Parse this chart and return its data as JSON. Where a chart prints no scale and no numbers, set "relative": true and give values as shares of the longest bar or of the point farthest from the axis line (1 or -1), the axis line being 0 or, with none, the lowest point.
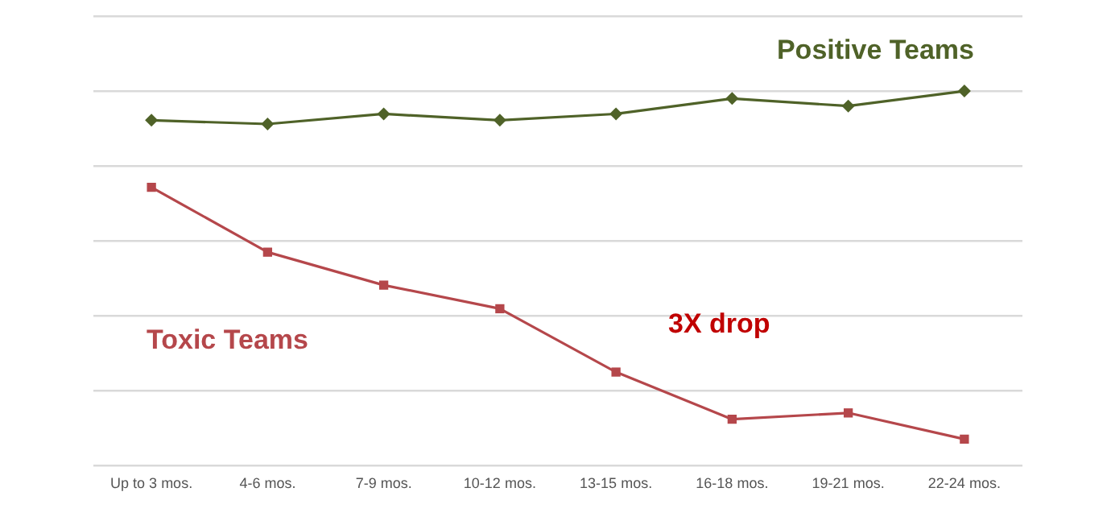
{
  "chart_data": {
    "type": "line",
    "relative": true,
    "grid": "y",
    "legend": false,
    "line_style": "solid",
    "categories": [
      "Up to 3 mos.",
      "4-6 mos.",
      "7-9 mos.",
      "10-12 mos.",
      "13-15 mos.",
      "16-18 mos.",
      "19-21 mos.",
      "22-24 mos."
    ],
    "series": [
      {
        "name": "Positive Teams",
        "color": "#4f6228",
        "marker": "diamond",
        "values": [
          0.922,
          0.912,
          0.939,
          0.922,
          0.939,
          0.98,
          0.96,
          1
        ]
      },
      {
        "name": "Toxic Teams",
        "color": "#b5474b",
        "marker": "square",
        "values": [
          0.743,
          0.57,
          0.482,
          0.419,
          0.25,
          0.124,
          0.141,
          0.071
        ]
      }
    ],
    "annotations": [
      "3X drop"
    ]
  }
}
